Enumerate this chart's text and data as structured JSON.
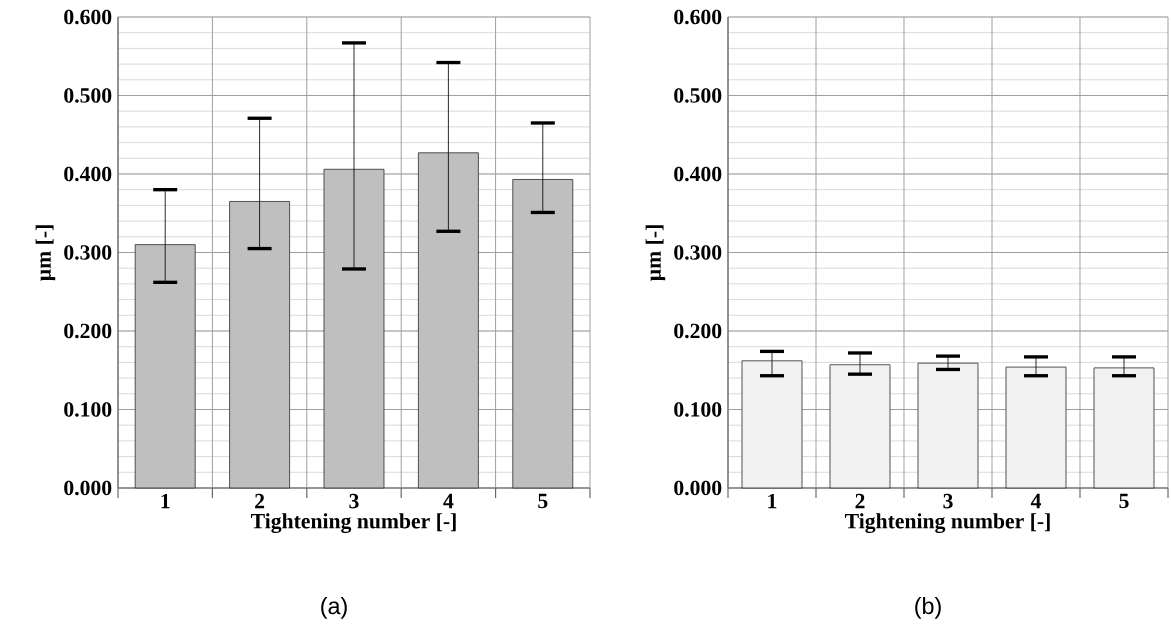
{
  "chart_data": [
    {
      "type": "bar",
      "categories": [
        "1",
        "2",
        "3",
        "4",
        "5"
      ],
      "values": [
        0.31,
        0.365,
        0.406,
        0.427,
        0.393
      ],
      "color": "#bfbfbf",
      "errors": [
        [
          0.262,
          0.38
        ],
        [
          0.305,
          0.471
        ],
        [
          0.279,
          0.567
        ],
        [
          0.327,
          0.542
        ],
        [
          0.351,
          0.465
        ]
      ],
      "xlabel": "Tightening number [-]",
      "ylabel": "µm [-]",
      "ylim": [
        0,
        0.6
      ],
      "yticks": [
        {
          "value": 0,
          "label": "0.000"
        },
        {
          "value": 0.1,
          "label": "0.100"
        },
        {
          "value": 0.2,
          "label": "0.200"
        },
        {
          "value": 0.3,
          "label": "0.300"
        },
        {
          "value": 0.4,
          "label": "0.400"
        },
        {
          "value": 0.5,
          "label": "0.500"
        },
        {
          "value": 0.6,
          "label": "0.600"
        }
      ],
      "grid": true,
      "annotations": [
        "(a)"
      ]
    },
    {
      "type": "bar",
      "categories": [
        "1",
        "2",
        "3",
        "4",
        "5"
      ],
      "values": [
        0.162,
        0.157,
        0.159,
        0.154,
        0.153
      ],
      "color": "#f2f2f2",
      "errors": [
        [
          0.143,
          0.174
        ],
        [
          0.145,
          0.172
        ],
        [
          0.151,
          0.168
        ],
        [
          0.143,
          0.167
        ],
        [
          0.143,
          0.167
        ]
      ],
      "xlabel": "Tightening number [-]",
      "ylabel": "µm [-]",
      "ylim": [
        0,
        0.6
      ],
      "yticks": [
        {
          "value": 0,
          "label": "0.000"
        },
        {
          "value": 0.1,
          "label": "0.100"
        },
        {
          "value": 0.2,
          "label": "0.200"
        },
        {
          "value": 0.3,
          "label": "0.300"
        },
        {
          "value": 0.4,
          "label": "0.400"
        },
        {
          "value": 0.5,
          "label": "0.500"
        },
        {
          "value": 0.6,
          "label": "0.600"
        }
      ],
      "grid": true,
      "annotations": [
        "(b)"
      ]
    }
  ]
}
